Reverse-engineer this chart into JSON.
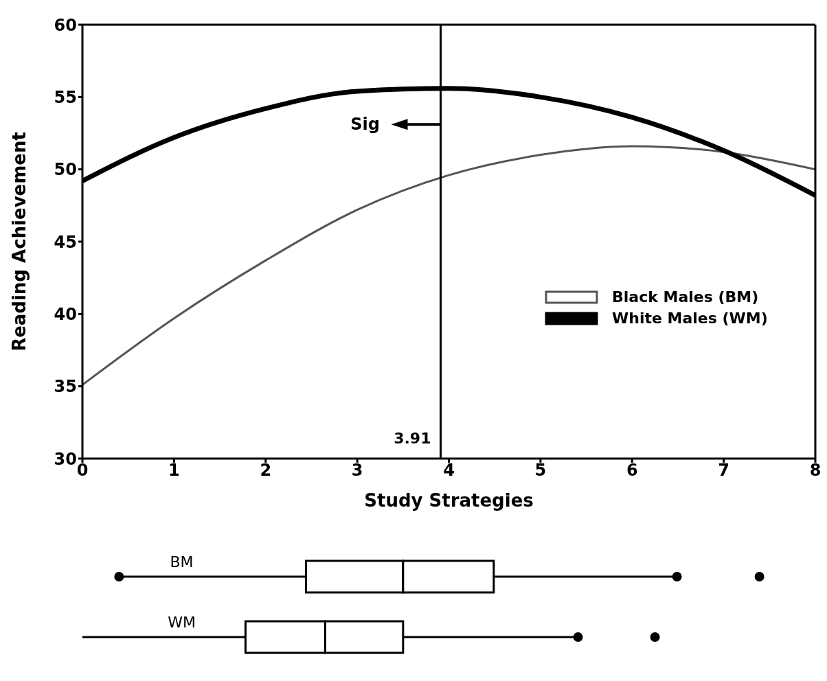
{
  "chart_data": [
    {
      "type": "line",
      "xlabel": "Study Strategies",
      "ylabel": "Reading Achievement",
      "x": [
        0,
        1,
        2,
        3,
        4,
        5,
        6,
        7,
        8
      ],
      "series": [
        {
          "name": "Black Males (BM)",
          "color": "#555555",
          "values": [
            35.1,
            39.7,
            43.7,
            47.2,
            49.6,
            51.0,
            51.6,
            51.2,
            50.0
          ]
        },
        {
          "name": "White Males (WM)",
          "color": "#000000",
          "values": [
            49.2,
            52.2,
            54.2,
            55.4,
            55.6,
            55.0,
            53.6,
            51.3,
            48.2
          ]
        }
      ],
      "xlim": [
        0,
        8
      ],
      "ylim": [
        30,
        60
      ],
      "xticks": [
        0,
        1,
        2,
        3,
        4,
        5,
        6,
        7,
        8
      ],
      "yticks": [
        30,
        35,
        40,
        45,
        50,
        55,
        60
      ],
      "grid": false,
      "legend": "right",
      "marker": "none",
      "line_style": "solid",
      "ref_lines": [
        {
          "axis": "x",
          "value": 3.91,
          "label": "3.91",
          "color": "#000000"
        }
      ],
      "annotations": [
        "Sig"
      ]
    },
    {
      "type": "box",
      "orientation": "horizontal",
      "categories": [
        "BM",
        "WM"
      ],
      "xlim": [
        0,
        8
      ],
      "xticks": [
        0,
        1,
        2,
        3,
        4,
        5,
        6,
        7,
        8
      ],
      "tick_labels": "y",
      "boxes": [
        {
          "low": 0.4,
          "q1": 2.44,
          "median": 3.5,
          "q3": 4.49,
          "high": 6.49,
          "outliers": [
            7.39
          ]
        },
        {
          "low": 0,
          "q1": 1.78,
          "median": 2.65,
          "q3": 3.5,
          "high": 5.41,
          "outliers": [
            6.25
          ]
        }
      ]
    }
  ]
}
